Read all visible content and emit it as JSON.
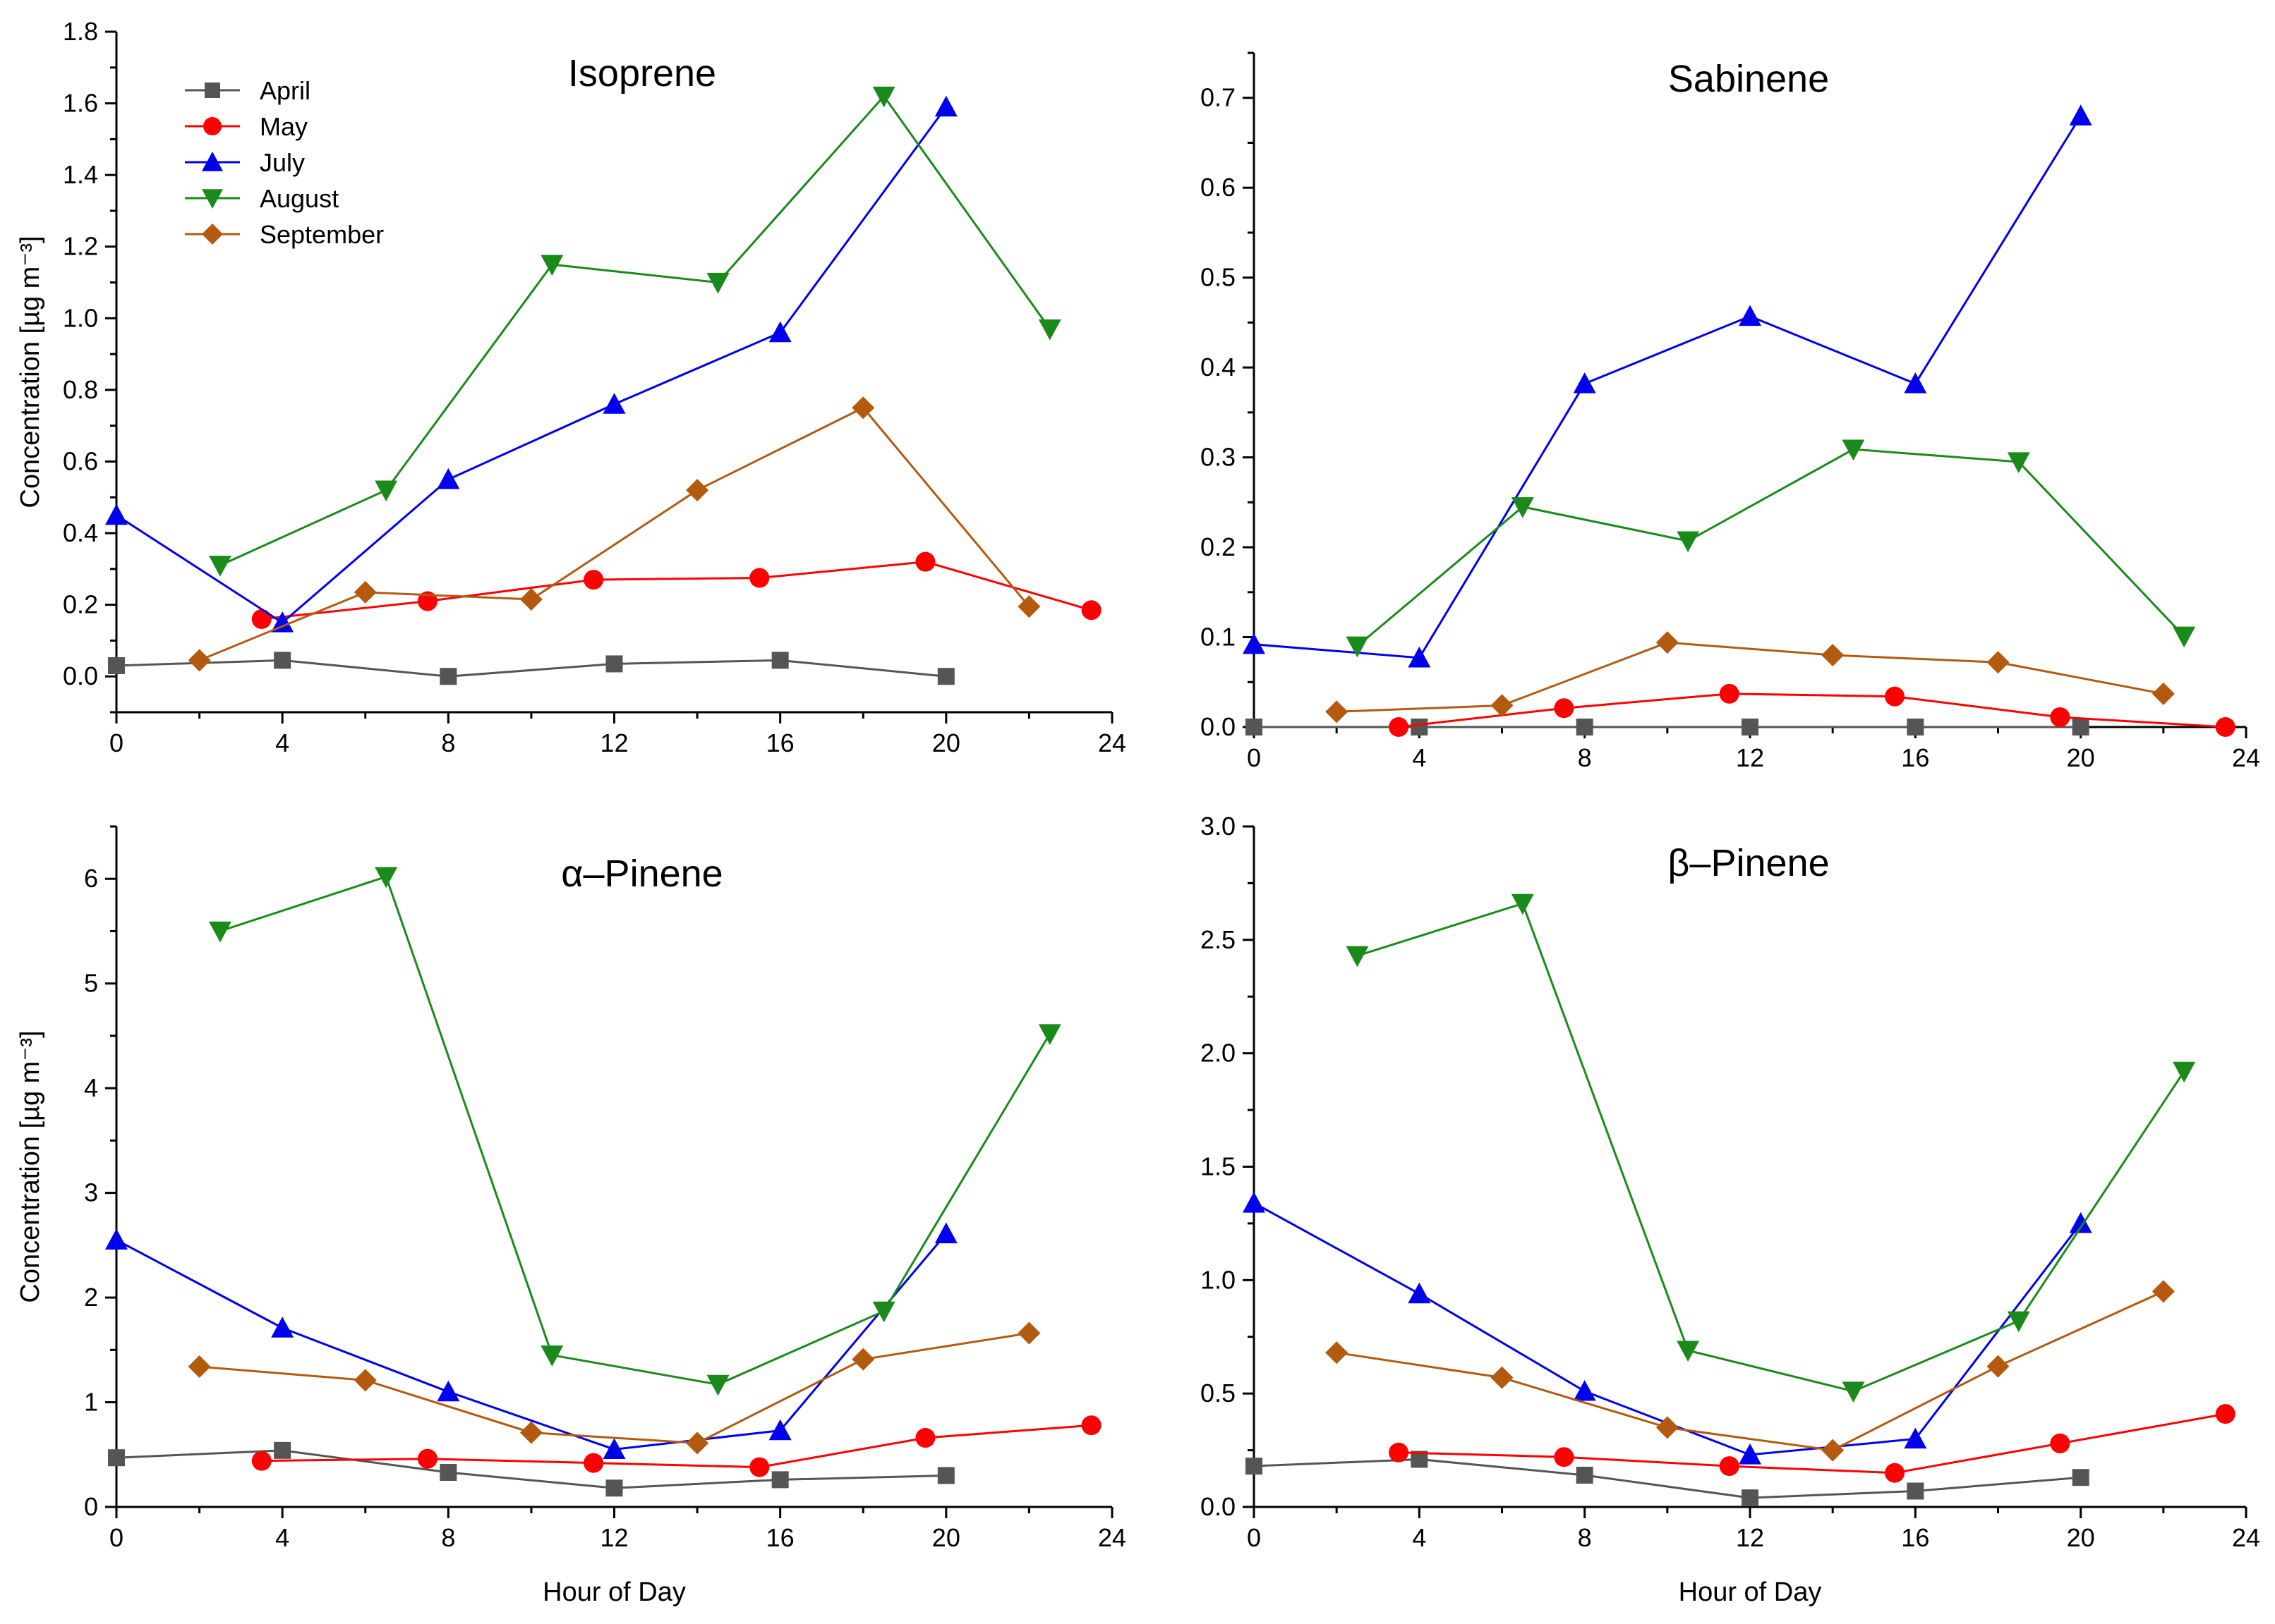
{
  "chart_data": [
    {
      "type": "line",
      "title": "Isoprene",
      "xlabel": "",
      "ylabel": "Concentration [µg m⁻³]",
      "xlim": [
        0,
        24
      ],
      "ylim": [
        -0.1,
        1.8
      ],
      "xticks": [
        0,
        4,
        8,
        12,
        16,
        20,
        24
      ],
      "yticks": [
        0.0,
        0.2,
        0.4,
        0.6,
        0.8,
        1.0,
        1.2,
        1.4,
        1.6,
        1.8
      ],
      "ytick_decimals": 1,
      "legend": true,
      "legend_position": "top-left",
      "series": [
        {
          "name": "April",
          "x": [
            0,
            4,
            8,
            12,
            16,
            20
          ],
          "values": [
            0.03,
            0.045,
            0.0,
            0.035,
            0.045,
            0.0
          ]
        },
        {
          "name": "May",
          "x": [
            3.5,
            7.5,
            11.5,
            15.5,
            19.5,
            23.5
          ],
          "values": [
            0.16,
            0.21,
            0.27,
            0.275,
            0.32,
            0.185
          ]
        },
        {
          "name": "July",
          "x": [
            0,
            4,
            8,
            12,
            16,
            20
          ],
          "values": [
            0.45,
            0.15,
            0.55,
            0.76,
            0.96,
            1.59
          ]
        },
        {
          "name": "August",
          "x": [
            2.5,
            6.5,
            10.5,
            14.5,
            18.5,
            22.5
          ],
          "values": [
            0.31,
            0.52,
            1.15,
            1.1,
            1.62,
            0.97
          ]
        },
        {
          "name": "September",
          "x": [
            2,
            6,
            10,
            14,
            18,
            22
          ],
          "values": [
            0.045,
            0.235,
            0.215,
            0.52,
            0.75,
            0.195
          ]
        }
      ]
    },
    {
      "type": "line",
      "title": "Sabinene",
      "xlabel": "",
      "ylabel": "",
      "xlim": [
        0,
        24
      ],
      "ylim": [
        0,
        0.75
      ],
      "xticks": [
        0,
        4,
        8,
        12,
        16,
        20,
        24
      ],
      "yticks": [
        0.0,
        0.1,
        0.2,
        0.3,
        0.4,
        0.5,
        0.6,
        0.7
      ],
      "ytick_decimals": 1,
      "legend": false,
      "series": [
        {
          "name": "April",
          "x": [
            0,
            4,
            8,
            12,
            16,
            20
          ],
          "values": [
            0.0,
            0.0,
            0.0,
            0.0,
            0.0,
            0.0
          ]
        },
        {
          "name": "May",
          "x": [
            3.5,
            7.5,
            11.5,
            15.5,
            19.5,
            23.5
          ],
          "values": [
            0.0,
            0.021,
            0.037,
            0.034,
            0.011,
            0.0
          ]
        },
        {
          "name": "July",
          "x": [
            0,
            4,
            8,
            12,
            16,
            20
          ],
          "values": [
            0.092,
            0.077,
            0.382,
            0.457,
            0.382,
            0.68
          ]
        },
        {
          "name": "August",
          "x": [
            2.5,
            6.5,
            10.5,
            14.5,
            18.5,
            22.5
          ],
          "values": [
            0.09,
            0.245,
            0.207,
            0.309,
            0.295,
            0.101
          ]
        },
        {
          "name": "September",
          "x": [
            2,
            6,
            10,
            14,
            18,
            22
          ],
          "values": [
            0.017,
            0.024,
            0.094,
            0.08,
            0.072,
            0.037
          ]
        }
      ]
    },
    {
      "type": "line",
      "title": "α–Pinene",
      "xlabel": "Hour of Day",
      "ylabel": "Concentration [µg m⁻³]",
      "xlim": [
        0,
        24
      ],
      "ylim": [
        0,
        6.5
      ],
      "xticks": [
        0,
        4,
        8,
        12,
        16,
        20,
        24
      ],
      "yticks": [
        0,
        1,
        2,
        3,
        4,
        5,
        6
      ],
      "ytick_decimals": 0,
      "legend": false,
      "series": [
        {
          "name": "April",
          "x": [
            0,
            4,
            8,
            12,
            16,
            20
          ],
          "values": [
            0.47,
            0.54,
            0.33,
            0.18,
            0.26,
            0.3
          ]
        },
        {
          "name": "May",
          "x": [
            3.5,
            7.5,
            11.5,
            15.5,
            19.5,
            23.5
          ],
          "values": [
            0.44,
            0.46,
            0.42,
            0.38,
            0.66,
            0.78
          ]
        },
        {
          "name": "July",
          "x": [
            0,
            4,
            8,
            12,
            16,
            20
          ],
          "values": [
            2.55,
            1.71,
            1.1,
            0.55,
            0.73,
            2.61
          ]
        },
        {
          "name": "August",
          "x": [
            2.5,
            6.5,
            10.5,
            14.5,
            18.5,
            22.5
          ],
          "values": [
            5.5,
            6.02,
            1.45,
            1.17,
            1.87,
            4.52
          ]
        },
        {
          "name": "September",
          "x": [
            2,
            6,
            10,
            14,
            18,
            22
          ],
          "values": [
            1.34,
            1.21,
            0.71,
            0.61,
            1.41,
            1.66
          ]
        }
      ]
    },
    {
      "type": "line",
      "title": "β–Pinene",
      "xlabel": "Hour of Day",
      "ylabel": "",
      "xlim": [
        0,
        24
      ],
      "ylim": [
        0,
        3.0
      ],
      "xticks": [
        0,
        4,
        8,
        12,
        16,
        20,
        24
      ],
      "yticks": [
        0.0,
        0.5,
        1.0,
        1.5,
        2.0,
        2.5,
        3.0
      ],
      "ytick_decimals": 1,
      "legend": false,
      "series": [
        {
          "name": "April",
          "x": [
            0,
            4,
            8,
            12,
            16,
            20
          ],
          "values": [
            0.18,
            0.21,
            0.14,
            0.04,
            0.07,
            0.13
          ]
        },
        {
          "name": "May",
          "x": [
            3.5,
            7.5,
            11.5,
            15.5,
            19.5,
            23.5
          ],
          "values": [
            0.24,
            0.22,
            0.18,
            0.15,
            0.28,
            0.41
          ]
        },
        {
          "name": "July",
          "x": [
            0,
            4,
            8,
            12,
            16,
            20
          ],
          "values": [
            1.34,
            0.94,
            0.51,
            0.23,
            0.3,
            1.25
          ]
        },
        {
          "name": "August",
          "x": [
            2.5,
            6.5,
            10.5,
            14.5,
            18.5,
            22.5
          ],
          "values": [
            2.43,
            2.66,
            0.69,
            0.51,
            0.82,
            1.92
          ]
        },
        {
          "name": "September",
          "x": [
            2,
            6,
            10,
            14,
            18,
            22
          ],
          "values": [
            0.68,
            0.57,
            0.35,
            0.25,
            0.62,
            0.95
          ]
        }
      ]
    }
  ],
  "series_styles": {
    "April": {
      "color": "#555555",
      "marker": "square-icon"
    },
    "May": {
      "color": "#ff0000",
      "marker": "circle-icon"
    },
    "July": {
      "color": "#0000ee",
      "marker": "triangle-up-icon"
    },
    "August": {
      "color": "#1a8a1a",
      "marker": "triangle-down-icon"
    },
    "September": {
      "color": "#b35a0f",
      "marker": "diamond-icon"
    }
  }
}
